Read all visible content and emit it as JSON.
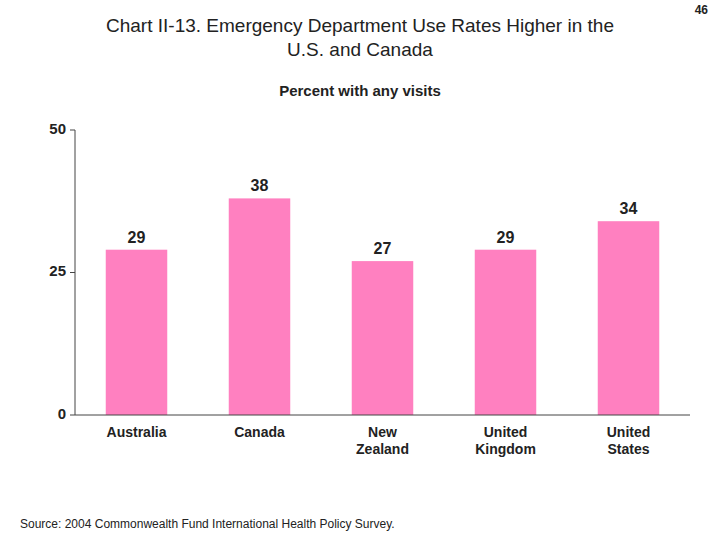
{
  "chart_data": {
    "type": "bar",
    "title": "Chart II-13. Emergency Department Use Rates Higher in the\nU.S. and Canada",
    "subtitle": "Percent with any visits",
    "annotations": [
      "46",
      "Source: 2004 Commonwealth Fund International Health Policy Survey."
    ],
    "categories": [
      "Australia",
      "Canada",
      "New\nZealand",
      "United\nKingdom",
      "United\nStates"
    ],
    "values": [
      29,
      38,
      27,
      29,
      34
    ],
    "color": "#FF80C0",
    "ylim": [
      0,
      50
    ],
    "yticks": [
      0,
      25,
      50
    ],
    "grid": false,
    "data_labels": true
  }
}
